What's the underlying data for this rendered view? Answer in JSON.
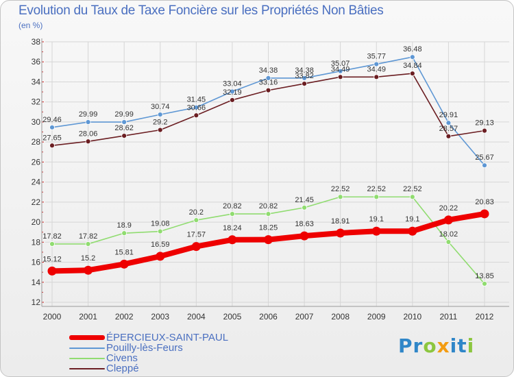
{
  "chart_data": {
    "type": "line",
    "title": "Evolution du Taux de Taxe Foncière sur les Propriétés Non Bâties",
    "ylabel": "(en %)",
    "xlabel": "",
    "ylim": [
      12,
      38
    ],
    "yticks": [
      12,
      14,
      16,
      18,
      20,
      22,
      24,
      26,
      28,
      30,
      32,
      34,
      36,
      38
    ],
    "categories": [
      "2000",
      "2001",
      "2002",
      "2003",
      "2004",
      "2005",
      "2006",
      "2007",
      "2008",
      "2009",
      "2010",
      "2011",
      "2012"
    ],
    "grid": true,
    "legend_position": "bottom-left",
    "series": [
      {
        "name": "Pouilly-lès-Feurs",
        "color": "#5e97d4",
        "values": [
          29.46,
          29.99,
          29.99,
          30.74,
          31.45,
          33.04,
          34.38,
          34.38,
          35.07,
          35.77,
          36.48,
          29.91,
          25.67
        ],
        "labels": [
          "29.46",
          "29.99",
          "29.99",
          "30.74",
          "31.45",
          "33.04",
          "34.38",
          "34.38",
          "35.07",
          "35.77",
          "36.48",
          "29.91",
          "25.67"
        ]
      },
      {
        "name": "Civens",
        "color": "#90dc70",
        "values": [
          17.82,
          17.82,
          18.9,
          19.08,
          20.2,
          20.82,
          20.82,
          21.45,
          22.52,
          22.52,
          22.52,
          18.02,
          13.85
        ],
        "labels": [
          "17.82",
          "17.82",
          "18.9",
          "19.08",
          "20.2",
          "20.82",
          "20.82",
          "21.45",
          "22.52",
          "22.52",
          "22.52",
          "18.02",
          "13.85"
        ]
      },
      {
        "name": "Cleppé",
        "color": "#6b1e22",
        "values": [
          27.65,
          28.06,
          28.62,
          29.2,
          30.66,
          32.19,
          33.16,
          33.82,
          34.49,
          34.49,
          34.84,
          28.57,
          29.13
        ],
        "labels": [
          "27.65",
          "28.06",
          "28.62",
          "29.2",
          "30.66",
          "32.19",
          "33.16",
          "33.82",
          "34.49",
          "34.49",
          "34.84",
          "28.57",
          "29.13"
        ]
      },
      {
        "name": "ÉPERCIEUX-SAINT-PAUL",
        "color": "#ee0000",
        "highlight": true,
        "values": [
          15.12,
          15.2,
          15.81,
          16.59,
          17.57,
          18.24,
          18.25,
          18.63,
          18.91,
          19.1,
          19.1,
          20.22,
          20.83
        ],
        "labels": [
          "15.12",
          "15.2",
          "15.81",
          "16.59",
          "17.57",
          "18.24",
          "18.25",
          "18.63",
          "18.91",
          "19.1",
          "19.1",
          "20.22",
          "20.83"
        ]
      }
    ]
  },
  "legend": {
    "items": [
      {
        "label": "ÉPERCIEUX-SAINT-PAUL",
        "color": "#ee0000",
        "text_color": "#4a6fc0"
      },
      {
        "label": "Pouilly-lès-Feurs",
        "color": "#5e97d4",
        "text_color": "#4a6fc0"
      },
      {
        "label": "Civens",
        "color": "#90dc70",
        "text_color": "#4a6fc0"
      },
      {
        "label": "Cleppé",
        "color": "#6b1e22",
        "text_color": "#4a6fc0"
      }
    ]
  },
  "logo": {
    "letters": [
      {
        "ch": "P",
        "color": "#2f86c8"
      },
      {
        "ch": "r",
        "color": "#2f86c8"
      },
      {
        "ch": "o",
        "color": "#8cc63f"
      },
      {
        "ch": "x",
        "color": "#f39c12"
      },
      {
        "ch": "i",
        "color": "#2f86c8"
      },
      {
        "ch": "t",
        "color": "#2f86c8"
      },
      {
        "ch": "i",
        "color": "#8cc63f"
      }
    ]
  }
}
